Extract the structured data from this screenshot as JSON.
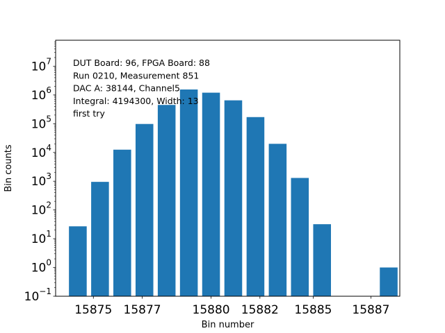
{
  "chart_data": {
    "type": "bar",
    "xlabel": "Bin number",
    "ylabel": "Bin counts",
    "yscale": "log",
    "ylim": [
      0.1,
      80000000
    ],
    "xlim": [
      15873.0,
      15888.5
    ],
    "x": [
      15874,
      15875,
      15876,
      15877,
      15878,
      15879,
      15880,
      15881,
      15882,
      15883,
      15884,
      15885,
      15888
    ],
    "values": [
      27,
      950,
      12500,
      98000,
      450000,
      1550000,
      1200000,
      650000,
      170000,
      20000,
      1300,
      32,
      1
    ],
    "bar_color": "#1f77b4",
    "x_ticks": [
      {
        "value": 15874.7,
        "label": "15875"
      },
      {
        "value": 15876.9,
        "label": "15877"
      },
      {
        "value": 15880.0,
        "label": "15880"
      },
      {
        "value": 15882.2,
        "label": "15882"
      },
      {
        "value": 15884.6,
        "label": "15885"
      },
      {
        "value": 15887.2,
        "label": "15887"
      }
    ],
    "y_ticks": [
      {
        "value": 0.1,
        "base": "10",
        "exp": "−1"
      },
      {
        "value": 1,
        "base": "10",
        "exp": "0"
      },
      {
        "value": 10,
        "base": "10",
        "exp": "1"
      },
      {
        "value": 100,
        "base": "10",
        "exp": "2"
      },
      {
        "value": 1000,
        "base": "10",
        "exp": "3"
      },
      {
        "value": 10000,
        "base": "10",
        "exp": "4"
      },
      {
        "value": 100000,
        "base": "10",
        "exp": "5"
      },
      {
        "value": 1000000,
        "base": "10",
        "exp": "6"
      },
      {
        "value": 10000000,
        "base": "10",
        "exp": "7"
      }
    ],
    "annotations": [
      "DUT Board: 96, FPGA Board: 88",
      "Run 0210, Measurement 851",
      "DAC A: 38144, Channel5",
      "Integral: 4194300, Width: 13",
      "first try"
    ]
  }
}
